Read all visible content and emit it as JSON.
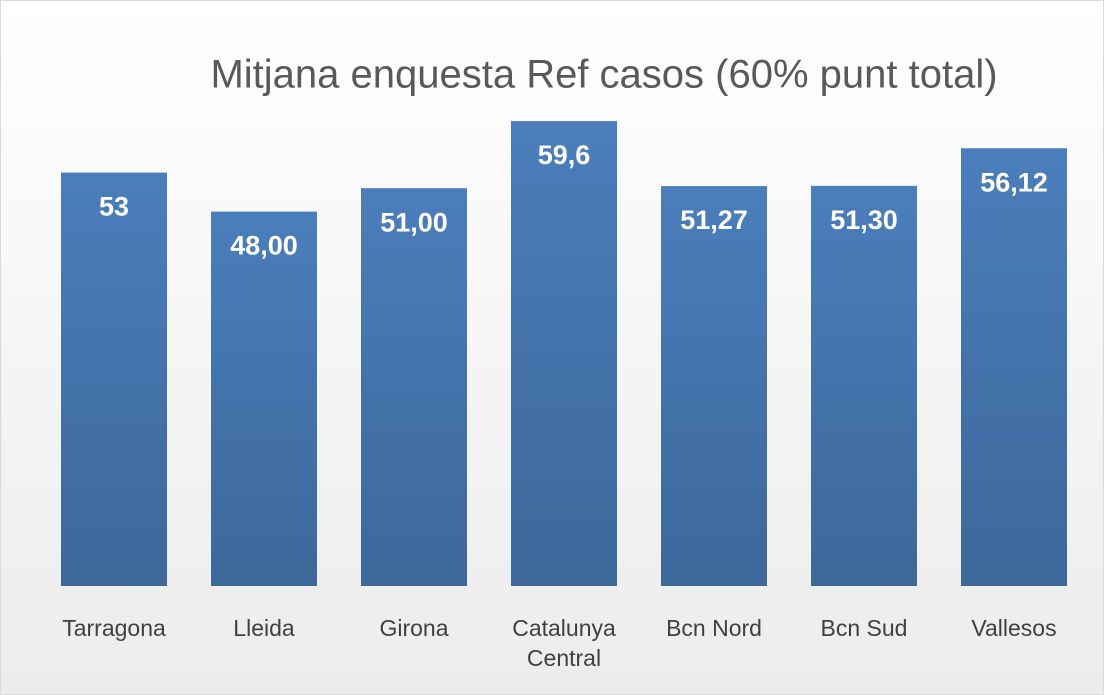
{
  "chart_data": {
    "type": "bar",
    "title": "Mitjana enquesta Ref casos (60% punt total)",
    "categories": [
      "Tarragona",
      "Lleida",
      "Girona",
      "Catalunya Central",
      "Bcn Nord",
      "Bcn Sud",
      "Vallesos"
    ],
    "values": [
      53,
      48,
      51,
      59.6,
      51.27,
      51.3,
      56.12
    ],
    "value_labels": [
      "53",
      "48,00",
      "51,00",
      "59,6",
      "51,27",
      "51,30",
      "56,12"
    ],
    "color": "#4a7ebb",
    "ylim": [
      0,
      60
    ]
  }
}
